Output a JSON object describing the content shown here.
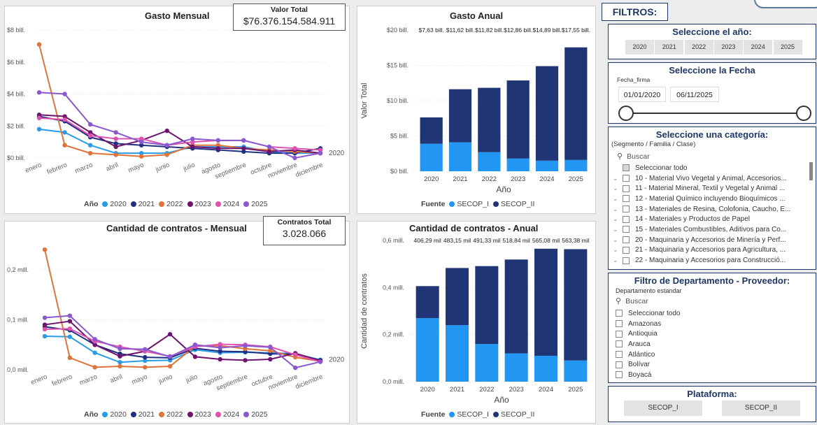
{
  "months": [
    "enero",
    "febrero",
    "marzo",
    "abril",
    "mayo",
    "junio",
    "julio",
    "agosto",
    "septiembre",
    "octubre",
    "noviembre",
    "diciembre"
  ],
  "year_colors": {
    "2020": "#2a9be8",
    "2021": "#1f2f82",
    "2022": "#e0733a",
    "2023": "#6d1470",
    "2024": "#df52b0",
    "2025": "#8a58cf"
  },
  "gasto_mensual": {
    "title": "Gasto Mensual",
    "y_ticks": [
      "$0 bill.",
      "$2 bill.",
      "$4 bill.",
      "$6 bill.",
      "$8 bill."
    ],
    "end_label": "2020",
    "legend_title": "Año",
    "legend": [
      "2020",
      "2021",
      "2022",
      "2023",
      "2024",
      "2025"
    ]
  },
  "valor_total": {
    "label": "Valor Total",
    "value": "$76.376.154.584.911"
  },
  "cantidad_mensual": {
    "title": "Cantidad de contratos - Mensual",
    "y_ticks": [
      "0,0 mill.",
      "0,1 mill.",
      "0,2 mill."
    ],
    "end_label": "2020",
    "legend_title": "Año",
    "legend": [
      "2020",
      "2021",
      "2022",
      "2023",
      "2024",
      "2025"
    ]
  },
  "contratos_total": {
    "label": "Contratos Total",
    "value": "3.028.066"
  },
  "gasto_anual": {
    "title": "Gasto Anual",
    "y_ticks": [
      "$0 bill.",
      "$5 bill.",
      "$10 bill.",
      "$15 bill.",
      "$20 bill."
    ],
    "ylabel": "Valor Total",
    "xlabel": "Año",
    "data_labels": [
      "$7,63 bill.",
      "$11,62 bill.",
      "$11,82 bill.",
      "$12,86 bill.",
      "$14,89 bill.",
      "$17,55 bill."
    ],
    "legend_title": "Fuente",
    "legend": [
      "SECOP_I",
      "SECOP_II"
    ]
  },
  "cantidad_anual": {
    "title": "Cantidad de contratos - Anual",
    "y_ticks": [
      "0,0 mill.",
      "0,2 mill.",
      "0,4 mill.",
      "0,6 mill."
    ],
    "ylabel": "Cantidad de contratos",
    "xlabel": "Año",
    "data_labels": [
      "406,29 mil",
      "483,15 mil",
      "491,33 mil",
      "518,84 mil",
      "565,08 mil",
      "563,38 mil"
    ],
    "legend_title": "Fuente",
    "legend": [
      "SECOP_I",
      "SECOP_II"
    ]
  },
  "source_colors": {
    "SECOP_I": "#2196f3",
    "SECOP_II": "#1f3575"
  },
  "chart_data": [
    {
      "type": "line",
      "title": "Gasto Mensual",
      "x": [
        "enero",
        "febrero",
        "marzo",
        "abril",
        "mayo",
        "junio",
        "julio",
        "agosto",
        "septiembre",
        "octubre",
        "noviembre",
        "diciembre"
      ],
      "ylim": [
        0,
        8
      ],
      "series": [
        {
          "name": "2020",
          "values": [
            1.8,
            1.6,
            0.8,
            0.3,
            0.3,
            0.3,
            0.7,
            0.7,
            0.7,
            0.4,
            0.3,
            0.3
          ]
        },
        {
          "name": "2021",
          "values": [
            2.6,
            2.3,
            1.3,
            0.9,
            0.8,
            0.7,
            0.6,
            0.5,
            0.4,
            0.3,
            0.3,
            0.6
          ]
        },
        {
          "name": "2022",
          "values": [
            7.1,
            0.8,
            0.3,
            0.2,
            0.1,
            0.2,
            0.8,
            0.8,
            0.6,
            0.5,
            0.4,
            0.3
          ]
        },
        {
          "name": "2023",
          "values": [
            2.7,
            2.6,
            1.6,
            0.7,
            1.1,
            1.7,
            0.7,
            0.6,
            0.6,
            0.4,
            0.5,
            0.3
          ]
        },
        {
          "name": "2024",
          "values": [
            2.5,
            2.4,
            1.4,
            1.2,
            1.2,
            0.8,
            1.0,
            1.1,
            1.1,
            0.7,
            0.6,
            0.5
          ]
        },
        {
          "name": "2025",
          "values": [
            4.1,
            4.0,
            2.1,
            1.6,
            1.0,
            0.8,
            1.2,
            1.1,
            1.1,
            0.7,
            0.0,
            0.3
          ]
        }
      ]
    },
    {
      "type": "line",
      "title": "Cantidad de contratos - Mensual",
      "x": [
        "enero",
        "febrero",
        "marzo",
        "abril",
        "mayo",
        "junio",
        "julio",
        "agosto",
        "septiembre",
        "octubre",
        "noviembre",
        "diciembre"
      ],
      "ylim": [
        0,
        0.25
      ],
      "series": [
        {
          "name": "2020",
          "values": [
            0.067,
            0.066,
            0.034,
            0.015,
            0.018,
            0.019,
            0.04,
            0.034,
            0.035,
            0.034,
            0.032,
            0.02
          ]
        },
        {
          "name": "2021",
          "values": [
            0.086,
            0.079,
            0.05,
            0.032,
            0.025,
            0.024,
            0.043,
            0.037,
            0.036,
            0.032,
            0.031,
            0.019
          ]
        },
        {
          "name": "2022",
          "values": [
            0.24,
            0.024,
            0.005,
            0.007,
            0.005,
            0.007,
            0.047,
            0.048,
            0.042,
            0.038,
            0.025,
            0.017
          ]
        },
        {
          "name": "2023",
          "values": [
            0.09,
            0.097,
            0.05,
            0.027,
            0.037,
            0.071,
            0.026,
            0.021,
            0.019,
            0.021,
            0.033,
            0.018
          ]
        },
        {
          "name": "2024",
          "values": [
            0.081,
            0.082,
            0.057,
            0.046,
            0.037,
            0.027,
            0.046,
            0.051,
            0.05,
            0.046,
            0.03,
            0.016
          ]
        },
        {
          "name": "2025",
          "values": [
            0.104,
            0.108,
            0.061,
            0.042,
            0.041,
            0.026,
            0.05,
            0.044,
            0.048,
            0.045,
            0.004,
            0.016
          ]
        }
      ]
    },
    {
      "type": "bar",
      "stacked": true,
      "title": "Gasto Anual",
      "categories": [
        "2020",
        "2021",
        "2022",
        "2023",
        "2024",
        "2025"
      ],
      "xlabel": "Año",
      "ylabel": "Valor Total",
      "ylim": [
        0,
        20
      ],
      "series": [
        {
          "name": "SECOP_I",
          "values": [
            3.9,
            4.1,
            2.7,
            1.8,
            1.5,
            1.6
          ]
        },
        {
          "name": "SECOP_II",
          "values": [
            3.73,
            7.52,
            9.12,
            11.06,
            13.39,
            15.95
          ]
        }
      ]
    },
    {
      "type": "bar",
      "stacked": true,
      "title": "Cantidad de contratos - Anual",
      "categories": [
        "2020",
        "2021",
        "2022",
        "2023",
        "2024",
        "2025"
      ],
      "xlabel": "Año",
      "ylabel": "Cantidad de contratos",
      "ylim": [
        0,
        0.6
      ],
      "series": [
        {
          "name": "SECOP_I",
          "values": [
            0.27,
            0.24,
            0.16,
            0.12,
            0.11,
            0.09
          ]
        },
        {
          "name": "SECOP_II",
          "values": [
            0.136,
            0.243,
            0.331,
            0.399,
            0.455,
            0.473
          ]
        }
      ]
    }
  ],
  "filters": {
    "title": "FILTROS:",
    "year": {
      "title": "Seleccione el año:",
      "options": [
        "2020",
        "2021",
        "2022",
        "2023",
        "2024",
        "2025"
      ]
    },
    "date": {
      "title": "Seleccione la Fecha",
      "field": "Fecha_firma",
      "start": "01/01/2020",
      "end": "06/11/2025"
    },
    "category": {
      "title": "Seleccione una categoría:",
      "subtitle": "(Segmento / Familia / Clase)",
      "search": "Buscar",
      "items": [
        "Seleccionar todo",
        "10 - Material Vivo Vegetal y Animal, Accesorios...",
        "11 - Material Mineral, Textil y Vegetal y Animal ...",
        "12 - Material Químico incluyendo Bioquímicos ...",
        "13 - Materiales de Resina, Colofonia, Caucho, E...",
        "14 - Materiales y Productos de Papel",
        "15 - Materiales Combustibles, Aditivos para Co...",
        "20 - Maquinaria y Accesorios de Minería y Perf...",
        "21 - Maquinaria y Accesorios para Agricultura, ...",
        "22 - Maquinaria y Accesorios para Construcció..."
      ]
    },
    "departamento": {
      "title": "Filtro de Departamento - Proveedor:",
      "field": "Departamento estandar",
      "search": "Buscar",
      "items": [
        "Seleccionar todo",
        "Amazonas",
        "Antioquia",
        "Arauca",
        "Atlántico",
        "Bolívar",
        "Boyacá"
      ]
    },
    "plataforma": {
      "title": "Plataforma:",
      "options": [
        "SECOP_I",
        "SECOP_II"
      ]
    }
  }
}
